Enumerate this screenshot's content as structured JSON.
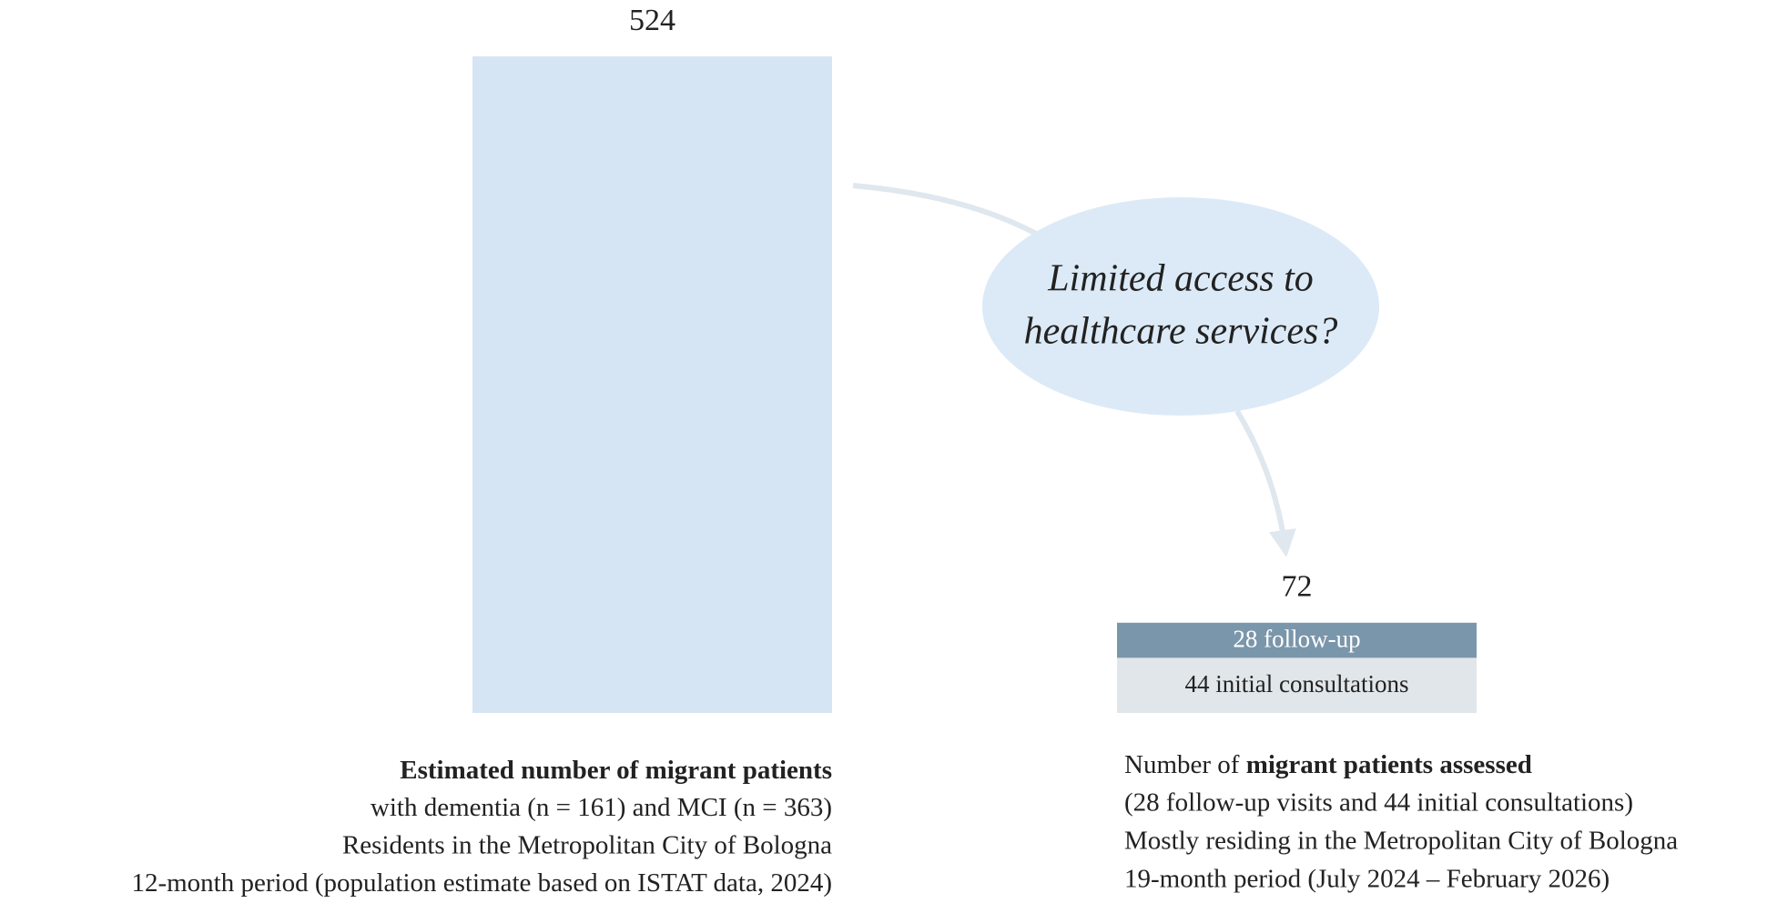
{
  "chart_data": {
    "type": "bar",
    "bars": [
      {
        "value": 524,
        "color": "#d6e5f3",
        "caption": {
          "bold": "Estimated number of migrant patients",
          "lines": [
            "with dementia (n = 161) and MCI (n = 363)",
            "Residents in the Metropolitan City of Bologna",
            "12-month period (population estimate based on ISTAT data, 2024)"
          ]
        }
      },
      {
        "value": 72,
        "segments": [
          {
            "value": 28,
            "value_label": "28 follow-up",
            "color": "#7a96ab",
            "text_color": "#ffffff"
          },
          {
            "value": 44,
            "value_label": "44 initial consultations",
            "color": "#e0e6ea",
            "text_color": "#222222"
          }
        ],
        "caption": {
          "lead": "Number of ",
          "bold": "migrant patients assessed",
          "lines": [
            "(28 follow-up visits and 44 initial consultations)",
            "Mostly residing in the Metropolitan City of Bologna",
            "19-month period (July 2024 – February 2026)"
          ]
        }
      }
    ],
    "annotation": [
      "Limited access to",
      "healthcare services?"
    ]
  }
}
